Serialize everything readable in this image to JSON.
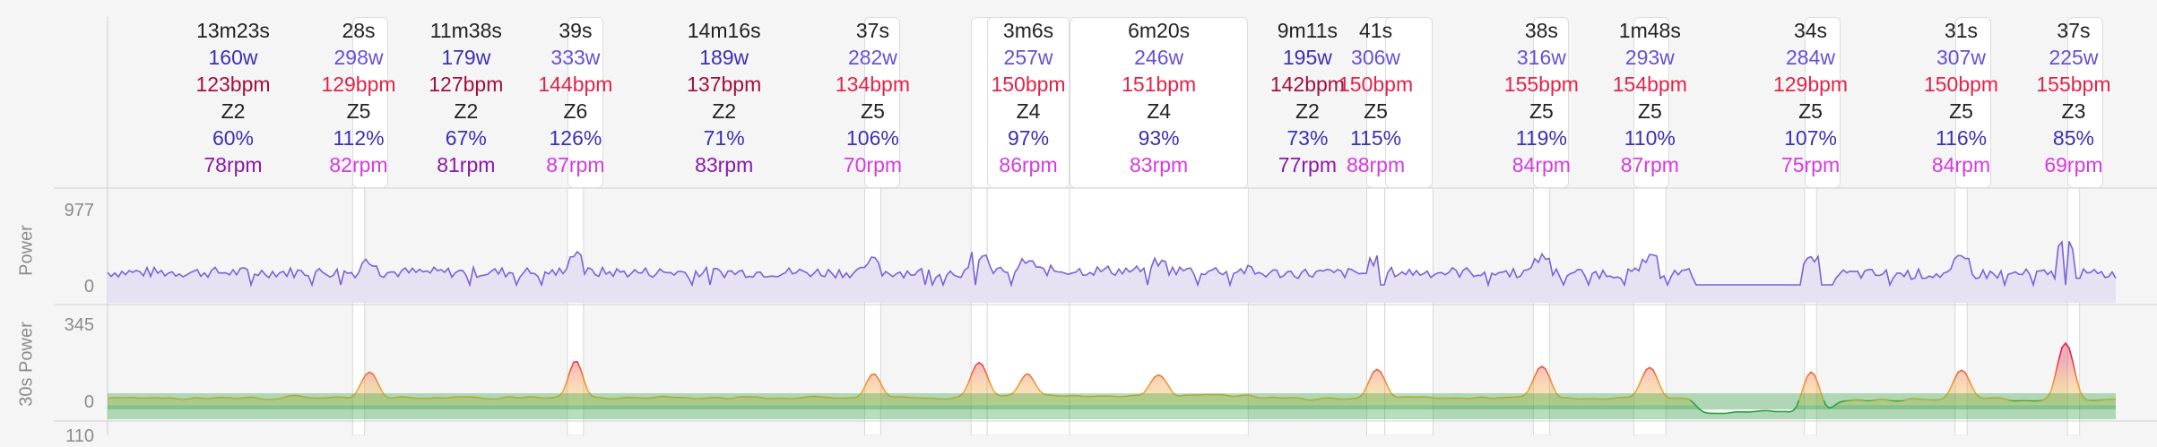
{
  "intervals": [
    {
      "dur": "13m23s",
      "power": "160w",
      "hr": "123bpm",
      "zone": "Z2",
      "pct": "60%",
      "cad": "78rpm",
      "hl": false,
      "s": 0.02,
      "e": 0.105
    },
    {
      "dur": "28s",
      "power": "298w",
      "hr": "129bpm",
      "zone": "Z5",
      "pct": "112%",
      "cad": "82rpm",
      "hl": true,
      "s": 0.122,
      "e": 0.128
    },
    {
      "dur": "11m38s",
      "power": "179w",
      "hr": "127bpm",
      "zone": "Z2",
      "pct": "67%",
      "cad": "81rpm",
      "hl": false,
      "s": 0.128,
      "e": 0.229
    },
    {
      "dur": "39s",
      "power": "333w",
      "hr": "144bpm",
      "zone": "Z6",
      "pct": "126%",
      "cad": "87rpm",
      "hl": true,
      "s": 0.229,
      "e": 0.237
    },
    {
      "dur": "14m16s",
      "power": "189w",
      "hr": "137bpm",
      "zone": "Z2",
      "pct": "71%",
      "cad": "83rpm",
      "hl": false,
      "s": 0.237,
      "e": 0.377
    },
    {
      "dur": "37s",
      "power": "282w",
      "hr": "134bpm",
      "zone": "Z5",
      "pct": "106%",
      "cad": "70rpm",
      "hl": true,
      "s": 0.377,
      "e": 0.385
    },
    {
      "dur": "",
      "power": "",
      "hr": "",
      "zone": "",
      "pct": "",
      "cad": "",
      "hl": true,
      "s": 0.43,
      "e": 0.438
    },
    {
      "dur": "3m6s",
      "power": "257w",
      "hr": "150bpm",
      "zone": "Z4",
      "pct": "97%",
      "cad": "86rpm",
      "hl": true,
      "s": 0.438,
      "e": 0.479
    },
    {
      "dur": "6m20s",
      "power": "246w",
      "hr": "151bpm",
      "zone": "Z4",
      "pct": "93%",
      "cad": "83rpm",
      "hl": true,
      "s": 0.479,
      "e": 0.568
    },
    {
      "dur": "9m11s",
      "power": "195w",
      "hr": "142bpm",
      "zone": "Z2",
      "pct": "73%",
      "cad": "77rpm",
      "hl": false,
      "s": 0.568,
      "e": 0.627
    },
    {
      "dur": "41s",
      "power": "306w",
      "hr": "150bpm",
      "zone": "Z5",
      "pct": "115%",
      "cad": "88rpm",
      "hl": true,
      "s": 0.627,
      "e": 0.636
    },
    {
      "dur": "",
      "power": "",
      "hr": "",
      "zone": "",
      "pct": "",
      "cad": "",
      "hl": true,
      "s": 0.636,
      "e": 0.66
    },
    {
      "dur": "38s",
      "power": "316w",
      "hr": "155bpm",
      "zone": "Z5",
      "pct": "119%",
      "cad": "84rpm",
      "hl": true,
      "s": 0.71,
      "e": 0.718
    },
    {
      "dur": "1m48s",
      "power": "293w",
      "hr": "154bpm",
      "zone": "Z5",
      "pct": "110%",
      "cad": "87rpm",
      "hl": true,
      "s": 0.76,
      "e": 0.776
    },
    {
      "dur": "34s",
      "power": "284w",
      "hr": "129bpm",
      "zone": "Z5",
      "pct": "107%",
      "cad": "75rpm",
      "hl": true,
      "s": 0.845,
      "e": 0.851
    },
    {
      "dur": "31s",
      "power": "307w",
      "hr": "150bpm",
      "zone": "Z5",
      "pct": "116%",
      "cad": "84rpm",
      "hl": true,
      "s": 0.92,
      "e": 0.926
    },
    {
      "dur": "37s",
      "power": "225w",
      "hr": "155bpm",
      "zone": "Z3",
      "pct": "85%",
      "cad": "69rpm",
      "hl": true,
      "s": 0.976,
      "e": 0.982
    }
  ],
  "power_panel": {
    "label": "Power",
    "max_tick": "977",
    "min_tick": "0",
    "color": "#7b63d6",
    "fill": "#e6e2f3"
  },
  "power30_panel": {
    "label": "30s Power",
    "max_tick": "345",
    "min_tick": "0",
    "zone_colors": [
      "#2e9e3e",
      "#e8c23a",
      "#f0922e",
      "#e0284a"
    ]
  },
  "bottom_tick": "110",
  "chart_data": {
    "type": "area",
    "series": [
      {
        "name": "Power",
        "ylim": [
          0,
          977
        ]
      },
      {
        "name": "30s Power",
        "ylim": [
          0,
          345
        ]
      }
    ]
  }
}
